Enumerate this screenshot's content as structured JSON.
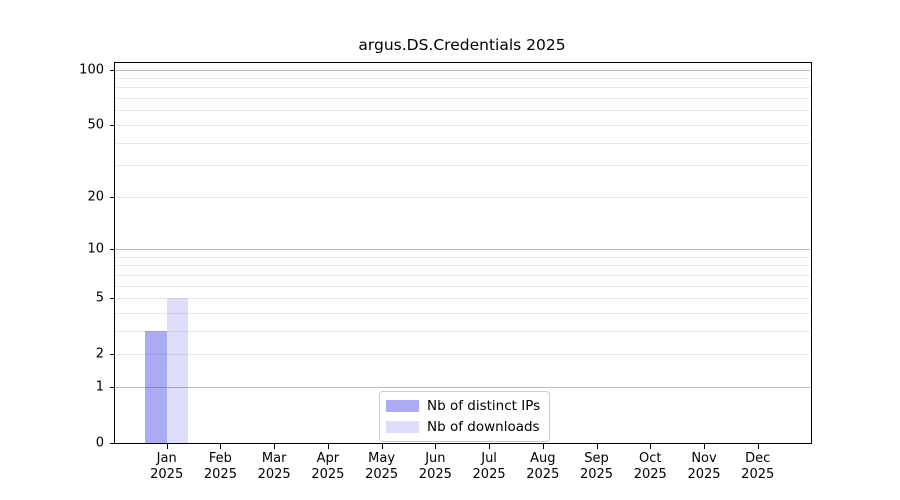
{
  "title": "argus.DS.Credentials 2025",
  "chart_data": {
    "type": "bar",
    "title": "argus.DS.Credentials 2025",
    "yscale": "log1p",
    "ylim": [
      0,
      110
    ],
    "grid": true,
    "legend_position": "bottom-center",
    "categories": [
      "Jan",
      "Feb",
      "Mar",
      "Apr",
      "May",
      "Jun",
      "Jul",
      "Aug",
      "Sep",
      "Oct",
      "Nov",
      "Dec"
    ],
    "category_year": "2025",
    "series": [
      {
        "name": "Nb of distinct IPs",
        "color": "#aaaaf5",
        "values": [
          3,
          0,
          0,
          0,
          0,
          0,
          0,
          0,
          0,
          0,
          0,
          0
        ]
      },
      {
        "name": "Nb of downloads",
        "color": "#ddddfa",
        "values": [
          5,
          0,
          0,
          0,
          0,
          0,
          0,
          0,
          0,
          0,
          0,
          0
        ]
      }
    ],
    "yticks": [
      0,
      1,
      2,
      5,
      10,
      20,
      50,
      100
    ],
    "yticks_emphasized": [
      1,
      10,
      100
    ],
    "yminor_gridlines": [
      3,
      4,
      6,
      7,
      8,
      9,
      30,
      40,
      60,
      70,
      80,
      90
    ]
  },
  "colors": {
    "background": "#ffffff",
    "spine": "#000000",
    "text": "#000000",
    "grid_major": "#bcbcbc",
    "grid_minor": "#ebebeb",
    "grid_major_rgba": "rgba(100,100,100,0.45)",
    "grid_minor_rgba": "rgba(100,100,100,0.14)",
    "legend_border": "#cccccc",
    "bar_distinct_ips": "#aaaaf5",
    "bar_downloads": "#ddddfa"
  }
}
